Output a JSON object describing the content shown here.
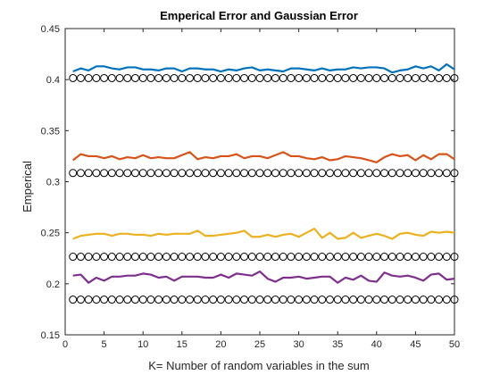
{
  "chart_data": {
    "type": "line",
    "title": "Emperical Error and Gaussian Error",
    "xlabel": "K= Number of random variables in the sum",
    "ylabel": "Emperical",
    "xlim": [
      0,
      50
    ],
    "ylim": [
      0.15,
      0.45
    ],
    "xticks": [
      0,
      5,
      10,
      15,
      20,
      25,
      30,
      35,
      40,
      45,
      50
    ],
    "yticks": [
      0.15,
      0.2,
      0.25,
      0.3,
      0.35,
      0.4,
      0.45
    ],
    "grid": false,
    "x": [
      1,
      2,
      3,
      4,
      5,
      6,
      7,
      8,
      9,
      10,
      11,
      12,
      13,
      14,
      15,
      16,
      17,
      18,
      19,
      20,
      21,
      22,
      23,
      24,
      25,
      26,
      27,
      28,
      29,
      30,
      31,
      32,
      33,
      34,
      35,
      36,
      37,
      38,
      39,
      40,
      41,
      42,
      43,
      44,
      45,
      46,
      47,
      48,
      49,
      50
    ],
    "series": [
      {
        "style": "line",
        "color": "#0072BD",
        "values": [
          0.408,
          0.411,
          0.409,
          0.413,
          0.413,
          0.411,
          0.41,
          0.412,
          0.412,
          0.41,
          0.41,
          0.409,
          0.411,
          0.411,
          0.408,
          0.411,
          0.411,
          0.41,
          0.41,
          0.408,
          0.41,
          0.409,
          0.411,
          0.412,
          0.409,
          0.41,
          0.409,
          0.408,
          0.411,
          0.411,
          0.41,
          0.409,
          0.411,
          0.409,
          0.41,
          0.41,
          0.412,
          0.411,
          0.412,
          0.412,
          0.411,
          0.407,
          0.409,
          0.41,
          0.413,
          0.411,
          0.413,
          0.409,
          0.415,
          0.41
        ]
      },
      {
        "style": "markers",
        "marker": "circle",
        "color": "#000000",
        "values": [
          0.4015,
          0.4015,
          0.4015,
          0.4015,
          0.4015,
          0.4015,
          0.4015,
          0.4015,
          0.4015,
          0.4015,
          0.4015,
          0.4015,
          0.4015,
          0.4015,
          0.4015,
          0.4015,
          0.4015,
          0.4015,
          0.4015,
          0.4015,
          0.4015,
          0.4015,
          0.4015,
          0.4015,
          0.4015,
          0.4015,
          0.4015,
          0.4015,
          0.4015,
          0.4015,
          0.4015,
          0.4015,
          0.4015,
          0.4015,
          0.4015,
          0.4015,
          0.4015,
          0.4015,
          0.4015,
          0.4015,
          0.4015,
          0.4015,
          0.4015,
          0.4015,
          0.4015,
          0.4015,
          0.4015,
          0.4015,
          0.4015,
          0.4015
        ]
      },
      {
        "style": "line",
        "color": "#D95319",
        "values": [
          0.321,
          0.327,
          0.325,
          0.325,
          0.323,
          0.325,
          0.322,
          0.324,
          0.323,
          0.326,
          0.323,
          0.324,
          0.323,
          0.323,
          0.326,
          0.329,
          0.322,
          0.324,
          0.323,
          0.325,
          0.325,
          0.327,
          0.323,
          0.325,
          0.325,
          0.323,
          0.326,
          0.329,
          0.325,
          0.325,
          0.323,
          0.322,
          0.324,
          0.321,
          0.322,
          0.325,
          0.324,
          0.323,
          0.321,
          0.319,
          0.324,
          0.327,
          0.325,
          0.326,
          0.321,
          0.326,
          0.322,
          0.327,
          0.327,
          0.322
        ]
      },
      {
        "style": "markers",
        "marker": "circle",
        "color": "#000000",
        "values": [
          0.3085,
          0.3085,
          0.3085,
          0.3085,
          0.3085,
          0.3085,
          0.3085,
          0.3085,
          0.3085,
          0.3085,
          0.3085,
          0.3085,
          0.3085,
          0.3085,
          0.3085,
          0.3085,
          0.3085,
          0.3085,
          0.3085,
          0.3085,
          0.3085,
          0.3085,
          0.3085,
          0.3085,
          0.3085,
          0.3085,
          0.3085,
          0.3085,
          0.3085,
          0.3085,
          0.3085,
          0.3085,
          0.3085,
          0.3085,
          0.3085,
          0.3085,
          0.3085,
          0.3085,
          0.3085,
          0.3085,
          0.3085,
          0.3085,
          0.3085,
          0.3085,
          0.3085,
          0.3085,
          0.3085,
          0.3085,
          0.3085,
          0.3085
        ]
      },
      {
        "style": "line",
        "color": "#EDB120",
        "values": [
          0.244,
          0.247,
          0.248,
          0.249,
          0.249,
          0.247,
          0.249,
          0.249,
          0.248,
          0.248,
          0.247,
          0.249,
          0.248,
          0.249,
          0.249,
          0.249,
          0.252,
          0.247,
          0.247,
          0.248,
          0.249,
          0.25,
          0.252,
          0.246,
          0.246,
          0.248,
          0.246,
          0.248,
          0.249,
          0.246,
          0.25,
          0.254,
          0.245,
          0.25,
          0.244,
          0.245,
          0.25,
          0.245,
          0.247,
          0.249,
          0.247,
          0.244,
          0.249,
          0.25,
          0.248,
          0.247,
          0.251,
          0.25,
          0.251,
          0.25
        ]
      },
      {
        "style": "markers",
        "marker": "circle",
        "color": "#000000",
        "values": [
          0.2265,
          0.2265,
          0.2265,
          0.2265,
          0.2265,
          0.2265,
          0.2265,
          0.2265,
          0.2265,
          0.2265,
          0.2265,
          0.2265,
          0.2265,
          0.2265,
          0.2265,
          0.2265,
          0.2265,
          0.2265,
          0.2265,
          0.2265,
          0.2265,
          0.2265,
          0.2265,
          0.2265,
          0.2265,
          0.2265,
          0.2265,
          0.2265,
          0.2265,
          0.2265,
          0.2265,
          0.2265,
          0.2265,
          0.2265,
          0.2265,
          0.2265,
          0.2265,
          0.2265,
          0.2265,
          0.2265,
          0.2265,
          0.2265,
          0.2265,
          0.2265,
          0.2265,
          0.2265,
          0.2265,
          0.2265,
          0.2265,
          0.2265
        ]
      },
      {
        "style": "line",
        "color": "#7E2F8E",
        "values": [
          0.208,
          0.209,
          0.201,
          0.206,
          0.203,
          0.207,
          0.207,
          0.208,
          0.208,
          0.21,
          0.209,
          0.206,
          0.207,
          0.203,
          0.207,
          0.207,
          0.207,
          0.206,
          0.206,
          0.209,
          0.206,
          0.21,
          0.209,
          0.208,
          0.212,
          0.205,
          0.202,
          0.206,
          0.206,
          0.207,
          0.205,
          0.206,
          0.207,
          0.207,
          0.201,
          0.206,
          0.204,
          0.208,
          0.203,
          0.202,
          0.211,
          0.208,
          0.207,
          0.208,
          0.206,
          0.203,
          0.209,
          0.21,
          0.204,
          0.205
        ]
      },
      {
        "style": "markers",
        "marker": "circle",
        "color": "#000000",
        "values": [
          0.1845,
          0.1845,
          0.1845,
          0.1845,
          0.1845,
          0.1845,
          0.1845,
          0.1845,
          0.1845,
          0.1845,
          0.1845,
          0.1845,
          0.1845,
          0.1845,
          0.1845,
          0.1845,
          0.1845,
          0.1845,
          0.1845,
          0.1845,
          0.1845,
          0.1845,
          0.1845,
          0.1845,
          0.1845,
          0.1845,
          0.1845,
          0.1845,
          0.1845,
          0.1845,
          0.1845,
          0.1845,
          0.1845,
          0.1845,
          0.1845,
          0.1845,
          0.1845,
          0.1845,
          0.1845,
          0.1845,
          0.1845,
          0.1845,
          0.1845,
          0.1845,
          0.1845,
          0.1845,
          0.1845,
          0.1845,
          0.1845,
          0.1845
        ]
      }
    ]
  }
}
